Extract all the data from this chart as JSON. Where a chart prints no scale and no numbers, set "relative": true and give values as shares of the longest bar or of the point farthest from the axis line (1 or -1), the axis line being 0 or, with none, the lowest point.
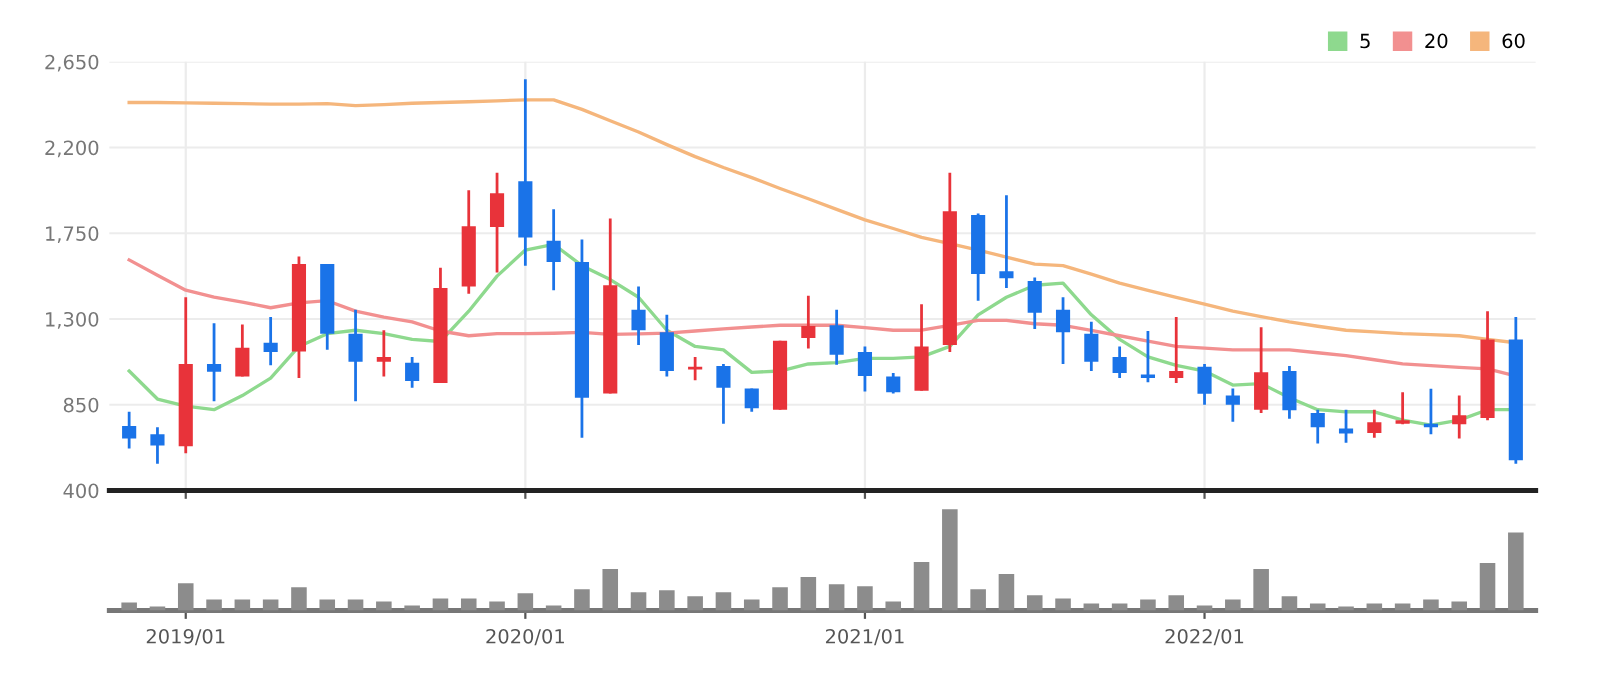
{
  "chart_data": [
    {
      "type": "candlestick",
      "categories": [
        null,
        null,
        "2019/01",
        null,
        null,
        null,
        null,
        null,
        null,
        null,
        null,
        null,
        null,
        null,
        "2020/01",
        null,
        null,
        null,
        null,
        null,
        null,
        null,
        null,
        null,
        null,
        null,
        "2021/01",
        null,
        null,
        null,
        null,
        null,
        null,
        null,
        null,
        null,
        null,
        null,
        "2022/01",
        null,
        null,
        null,
        null,
        null,
        null,
        null,
        null,
        null,
        null,
        null
      ],
      "ohlc": [
        [
          739,
          813,
          621,
          673
        ],
        [
          695,
          732,
          540,
          636
        ],
        [
          632,
          1414,
          595,
          1064
        ],
        [
          1064,
          1278,
          868,
          1023
        ],
        [
          998,
          1271,
          998,
          1149
        ],
        [
          1175,
          1311,
          1057,
          1127
        ],
        [
          1130,
          1628,
          990,
          1588
        ],
        [
          1588,
          1588,
          1138,
          1223
        ],
        [
          1223,
          1348,
          868,
          1075
        ],
        [
          1075,
          1241,
          998,
          1101
        ],
        [
          1071,
          1101,
          939,
          975
        ],
        [
          964,
          1569,
          964,
          1462
        ],
        [
          1470,
          1975,
          1433,
          1787
        ],
        [
          1783,
          2067,
          1544,
          1960
        ],
        [
          2023,
          2558,
          1580,
          1728
        ],
        [
          1710,
          1876,
          1451,
          1599
        ],
        [
          1599,
          1717,
          677,
          887
        ],
        [
          909,
          1828,
          909,
          1477
        ],
        [
          1348,
          1470,
          1164,
          1241
        ],
        [
          1230,
          1322,
          998,
          1027
        ],
        [
          1035,
          1101,
          979,
          1049
        ],
        [
          1053,
          1064,
          750,
          939
        ],
        [
          935,
          935,
          813,
          832
        ],
        [
          824,
          1186,
          824,
          1186
        ],
        [
          1200,
          1422,
          1145,
          1263
        ],
        [
          1267,
          1348,
          1060,
          1112
        ],
        [
          1127,
          1156,
          920,
          1001
        ],
        [
          998,
          1016,
          909,
          916
        ],
        [
          924,
          1378,
          924,
          1156
        ],
        [
          1164,
          2067,
          1127,
          1865
        ],
        [
          1846,
          1853,
          1396,
          1536
        ],
        [
          1551,
          1949,
          1462,
          1514
        ],
        [
          1499,
          1518,
          1248,
          1333
        ],
        [
          1348,
          1414,
          1064,
          1230
        ],
        [
          1223,
          1285,
          1027,
          1075
        ],
        [
          1101,
          1156,
          990,
          1016
        ],
        [
          1009,
          1237,
          968,
          990
        ],
        [
          990,
          1311,
          964,
          1027
        ],
        [
          1049,
          1064,
          850,
          908
        ],
        [
          898,
          935,
          761,
          850
        ],
        [
          824,
          1256,
          806,
          1020
        ],
        [
          1027,
          1053,
          776,
          821
        ],
        [
          806,
          824,
          647,
          732
        ],
        [
          725,
          824,
          651,
          699
        ],
        [
          702,
          824,
          677,
          758
        ],
        [
          750,
          916,
          747,
          769
        ],
        [
          750,
          934,
          695,
          732
        ],
        [
          747,
          898,
          673,
          795
        ],
        [
          780,
          1341,
          769,
          1193
        ],
        [
          1193,
          1311,
          540,
          559
        ]
      ],
      "colors": [
        "#1a73e8",
        "#1a73e8",
        "#e8333a",
        "#1a73e8",
        "#e8333a",
        "#1a73e8",
        "#e8333a",
        "#1a73e8",
        "#1a73e8",
        "#e8333a",
        "#1a73e8",
        "#e8333a",
        "#e8333a",
        "#e8333a",
        "#1a73e8",
        "#1a73e8",
        "#1a73e8",
        "#e8333a",
        "#1a73e8",
        "#1a73e8",
        "#e8333a",
        "#1a73e8",
        "#1a73e8",
        "#e8333a",
        "#e8333a",
        "#1a73e8",
        "#1a73e8",
        "#1a73e8",
        "#e8333a",
        "#e8333a",
        "#1a73e8",
        "#1a73e8",
        "#1a73e8",
        "#1a73e8",
        "#1a73e8",
        "#1a73e8",
        "#1a73e8",
        "#e8333a",
        "#1a73e8",
        "#1a73e8",
        "#e8333a",
        "#1a73e8",
        "#1a73e8",
        "#1a73e8",
        "#e8333a",
        "#e8333a",
        "#1a73e8",
        "#e8333a",
        "#e8333a",
        "#1a73e8"
      ],
      "series": [
        {
          "name": "5",
          "type": "line",
          "color": "#8ed98e",
          "values": [
            1027,
            880,
            843,
            824,
            898,
            990,
            1156,
            1223,
            1241,
            1223,
            1193,
            1182,
            1341,
            1525,
            1662,
            1692,
            1580,
            1507,
            1414,
            1241,
            1156,
            1138,
            1020,
            1027,
            1064,
            1071,
            1093,
            1093,
            1101,
            1156,
            1322,
            1414,
            1477,
            1488,
            1322,
            1193,
            1101,
            1057,
            1027,
            953,
            961,
            887,
            824,
            813,
            813,
            769,
            743,
            769,
            824,
            824
          ]
        },
        {
          "name": "20",
          "type": "line",
          "color": "#f29090",
          "values": [
            1610,
            1530,
            1451,
            1415,
            1389,
            1359,
            1385,
            1396,
            1341,
            1310,
            1285,
            1237,
            1212,
            1223,
            1223,
            1225,
            1230,
            1219,
            1222,
            1226,
            1237,
            1248,
            1258,
            1267,
            1267,
            1267,
            1255,
            1241,
            1241,
            1267,
            1293,
            1293,
            1275,
            1267,
            1240,
            1212,
            1184,
            1156,
            1147,
            1138,
            1138,
            1138,
            1123,
            1108,
            1086,
            1064,
            1055,
            1046,
            1038,
            1001
          ]
        },
        {
          "name": "60",
          "type": "line",
          "color": "#f5b67c",
          "values": [
            2436,
            2436,
            2434,
            2432,
            2430,
            2428,
            2428,
            2430,
            2420,
            2425,
            2432,
            2436,
            2440,
            2445,
            2450,
            2450,
            2400,
            2340,
            2281,
            2215,
            2152,
            2095,
            2042,
            1985,
            1931,
            1875,
            1820,
            1775,
            1728,
            1695,
            1662,
            1625,
            1588,
            1580,
            1535,
            1488,
            1450,
            1414,
            1378,
            1341,
            1312,
            1285,
            1262,
            1241,
            1232,
            1223,
            1218,
            1212,
            1193,
            1175
          ]
        }
      ],
      "ylim": [
        400,
        2650
      ],
      "yticks": [
        400,
        {
          "value": 850,
          "label": "850"
        },
        {
          "value": 1300,
          "label": "1,300"
        },
        {
          "value": 1750,
          "label": "1,750"
        },
        {
          "value": 2200,
          "label": "2,200"
        },
        {
          "value": 2650,
          "label": "2,650"
        }
      ],
      "grid": true,
      "legend": "top right",
      "tick_labels": "y"
    },
    {
      "type": "bar",
      "relative": true,
      "color": "#8c8c8c",
      "categories": [
        null,
        null,
        "2019/01",
        null,
        null,
        null,
        null,
        null,
        null,
        null,
        null,
        null,
        null,
        null,
        "2020/01",
        null,
        null,
        null,
        null,
        null,
        null,
        null,
        null,
        null,
        null,
        null,
        "2021/01",
        null,
        null,
        null,
        null,
        null,
        null,
        null,
        null,
        null,
        null,
        null,
        "2022/01",
        null,
        null,
        null,
        null,
        null,
        null,
        null,
        null,
        null,
        null,
        null
      ],
      "values": [
        0.08,
        0.04,
        0.27,
        0.11,
        0.11,
        0.11,
        0.23,
        0.11,
        0.11,
        0.09,
        0.05,
        0.12,
        0.12,
        0.09,
        0.17,
        0.05,
        0.21,
        0.41,
        0.18,
        0.2,
        0.14,
        0.18,
        0.11,
        0.23,
        0.33,
        0.26,
        0.24,
        0.09,
        0.48,
        1,
        0.21,
        0.36,
        0.15,
        0.12,
        0.07,
        0.07,
        0.11,
        0.15,
        0.05,
        0.11,
        0.41,
        0.14,
        0.07,
        0.04,
        0.07,
        0.07,
        0.11,
        0.09,
        0.47,
        0.77
      ],
      "tick_labels": "x"
    }
  ]
}
